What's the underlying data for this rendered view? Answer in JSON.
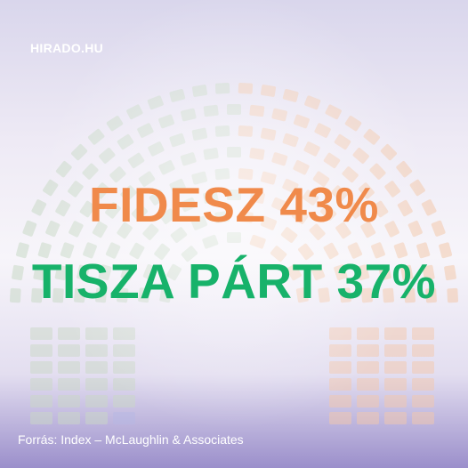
{
  "brand": {
    "logo_text": "HIRADO.HU"
  },
  "headline": {
    "line1": "FIDESZ 43%",
    "line2": "TISZA PÁRT 37%"
  },
  "source": {
    "text": "Forrás:  Index – McLaughlin & Associates"
  },
  "colors": {
    "fidesz": "#f08a4b",
    "tisza": "#17b26a",
    "seat_left": "#c9d8c6",
    "seat_right": "#f3c8ac",
    "seat_neutral": "#d6d3df",
    "seat_blue": "#b6b7e4"
  }
}
